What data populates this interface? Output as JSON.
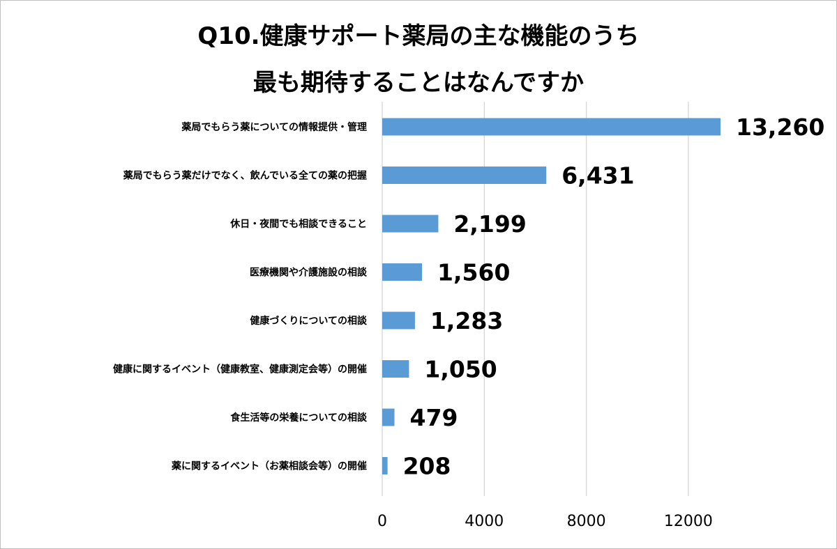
{
  "title_line1": "Q10.健康サポート薬局の主な機能のうち",
  "title_line2": "最も期待することはなんですか",
  "chart_data": {
    "type": "bar",
    "orientation": "horizontal",
    "title": "Q10.健康サポート薬局の主な機能のうち 最も期待することはなんですか",
    "categories": [
      "薬局でもらう薬についての情報提供・管理",
      "薬局でもらう薬だけでなく、飲んでいる全ての薬の把握",
      "休日・夜間でも相談できること",
      "医療機関や介護施設の相談",
      "健康づくりについての相談",
      "健康に関するイベント（健康教室、健康測定会等）の開催",
      "食生活等の栄養についての相談",
      "薬に関するイベント（お薬相談会等）の開催"
    ],
    "values": [
      13260,
      6431,
      2199,
      1560,
      1283,
      1050,
      479,
      208
    ],
    "value_labels": [
      "13,260",
      "6,431",
      "2,199",
      "1,560",
      "1,283",
      "1,050",
      "479",
      "208"
    ],
    "xlim": [
      0,
      14000
    ],
    "xticks": [
      0,
      4000,
      8000,
      12000
    ],
    "tick_labels": [
      "0",
      "4000",
      "8000",
      "12000"
    ],
    "grid": true,
    "legend": "none",
    "bar_color": "#5b9bd5"
  }
}
